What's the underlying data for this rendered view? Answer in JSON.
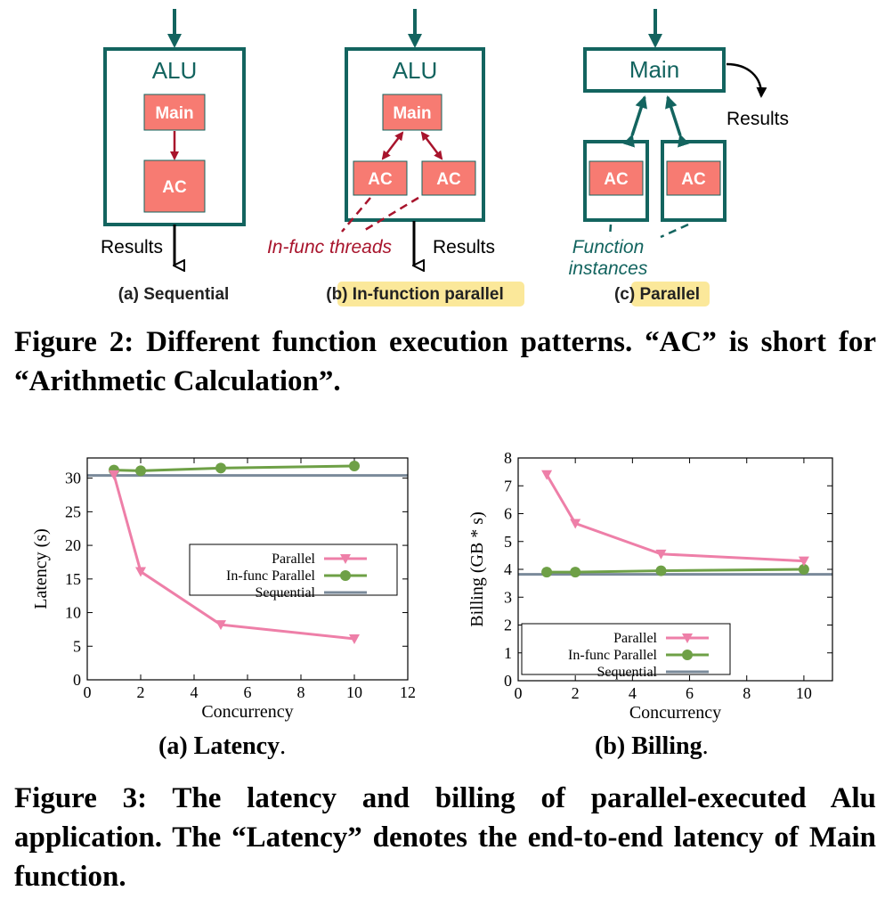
{
  "figure2": {
    "panel_a": {
      "box_title": "ALU",
      "main_label": "Main",
      "ac_label": "AC",
      "results_label": "Results",
      "sub_label": "(a)",
      "sub_name": "Sequential"
    },
    "panel_b": {
      "box_title": "ALU",
      "main_label": "Main",
      "ac_label_1": "AC",
      "ac_label_2": "AC",
      "threads_note": "In-func threads",
      "results_label": "Results",
      "sub_label": "(b)",
      "sub_name": "In-function parallel"
    },
    "panel_c": {
      "main_label": "Main",
      "ac_label_1": "AC",
      "ac_label_2": "AC",
      "results_label": "Results",
      "instances_note_1": "Function",
      "instances_note_2": "instances",
      "sub_label": "(c)",
      "sub_name": "Parallel"
    },
    "caption": "Figure 2: Different function execution patterns. “AC” is short for “Arithmetic Calculation”."
  },
  "colors": {
    "teal": "#13645f",
    "ac_fill": "#f77b72",
    "crimson": "#a8142c",
    "highlight": "#fbe89a",
    "parallel": "#ee7fa8",
    "in_func": "#6ea046",
    "sequential": "#7a8a9a"
  },
  "chart_data": [
    {
      "type": "line",
      "title": "",
      "xlabel": "Concurrency",
      "ylabel": "Latency (s)",
      "xlim": [
        0,
        12
      ],
      "ylim": [
        0,
        33
      ],
      "xticks": [
        0,
        2,
        4,
        6,
        8,
        10,
        12
      ],
      "yticks": [
        0,
        5,
        10,
        15,
        20,
        25,
        30
      ],
      "legend_position": "center-right",
      "series": [
        {
          "name": "Parallel",
          "x": [
            1,
            2,
            5,
            10
          ],
          "y": [
            30.5,
            16.1,
            8.2,
            6.1
          ],
          "marker": "triangle-down"
        },
        {
          "name": "In-func Parallel",
          "x": [
            1,
            2,
            5,
            10
          ],
          "y": [
            31.2,
            31.1,
            31.5,
            31.8
          ],
          "marker": "circle"
        },
        {
          "name": "Sequential",
          "x": [
            0,
            12
          ],
          "y": [
            30.4,
            30.4
          ],
          "marker": "none"
        }
      ],
      "subcaption_label": "(a) Latency",
      "subcaption_end": "."
    },
    {
      "type": "line",
      "title": "",
      "xlabel": "Concurrency",
      "ylabel": "Billing (GB * s)",
      "xlim": [
        0,
        11
      ],
      "ylim": [
        0,
        8
      ],
      "xticks": [
        0,
        2,
        4,
        6,
        8,
        10
      ],
      "yticks": [
        0,
        1,
        2,
        3,
        4,
        5,
        6,
        7,
        8
      ],
      "legend_position": "bottom-left",
      "series": [
        {
          "name": "Parallel",
          "x": [
            1,
            2,
            5,
            10
          ],
          "y": [
            7.4,
            5.65,
            4.55,
            4.3
          ],
          "marker": "triangle-down"
        },
        {
          "name": "In-func Parallel",
          "x": [
            1,
            2,
            5,
            10
          ],
          "y": [
            3.9,
            3.9,
            3.95,
            4.0
          ],
          "marker": "circle"
        },
        {
          "name": "Sequential",
          "x": [
            0,
            11
          ],
          "y": [
            3.82,
            3.82
          ],
          "marker": "none"
        }
      ],
      "subcaption_label": "(b) Billing",
      "subcaption_end": "."
    }
  ],
  "figure3": {
    "caption": "Figure 3: The latency and billing of parallel-executed Alu application. The “Latency” denotes the end-to-end latency of Main function."
  }
}
